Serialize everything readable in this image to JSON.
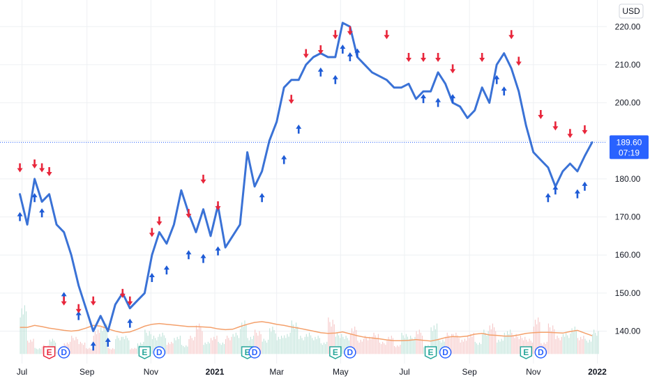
{
  "chart_data": {
    "type": "line",
    "currency": "USD",
    "y_ticks": [
      220,
      210,
      200,
      190,
      180,
      170,
      160,
      150,
      140
    ],
    "y_tick_labels": [
      "220.00",
      "210.00",
      "200.00",
      "190.00",
      "180.00",
      "170.00",
      "160.00",
      "150.00",
      "140.00"
    ],
    "ylim": [
      131.5,
      227
    ],
    "x_tick_labels": [
      "Jul",
      "Sep",
      "Nov",
      "2021",
      "Mar",
      "May",
      "Jul",
      "Sep",
      "Nov",
      "2022"
    ],
    "x_tick_bold": [
      "2021",
      "2022"
    ],
    "last_price": "189.60",
    "countdown": "07:19",
    "price_line_color": "#3a72d6",
    "volume_ma_color": "#f4a06b",
    "buy_color": "#1e5bd6",
    "sell_color": "#e8263b",
    "price_label_color": "#2962ff",
    "series": [
      {
        "x": [
          "2020-06-29",
          "2020-07-06",
          "2020-07-13",
          "2020-07-20",
          "2020-07-27",
          "2020-08-03",
          "2020-08-10",
          "2020-08-17",
          "2020-08-24",
          "2020-08-31",
          "2020-09-07",
          "2020-09-14",
          "2020-09-21",
          "2020-09-28",
          "2020-10-05",
          "2020-10-12",
          "2020-10-19",
          "2020-10-26",
          "2020-11-02",
          "2020-11-09",
          "2020-11-16",
          "2020-11-23",
          "2020-11-30",
          "2020-12-07",
          "2020-12-14",
          "2020-12-21",
          "2020-12-28",
          "2021-01-04",
          "2021-01-11",
          "2021-01-18",
          "2021-01-25",
          "2021-02-01",
          "2021-02-08",
          "2021-02-15",
          "2021-02-22",
          "2021-03-01",
          "2021-03-08",
          "2021-03-15",
          "2021-03-22",
          "2021-03-29",
          "2021-04-05",
          "2021-04-12",
          "2021-04-19",
          "2021-04-26",
          "2021-05-03",
          "2021-05-10",
          "2021-05-17",
          "2021-05-24",
          "2021-05-31",
          "2021-06-07",
          "2021-06-14",
          "2021-06-21",
          "2021-06-28",
          "2021-07-05",
          "2021-07-12",
          "2021-07-19",
          "2021-07-26",
          "2021-08-02",
          "2021-08-09",
          "2021-08-16",
          "2021-08-23",
          "2021-08-30",
          "2021-09-06",
          "2021-09-13",
          "2021-09-20",
          "2021-09-27",
          "2021-10-04",
          "2021-10-11",
          "2021-10-18",
          "2021-10-25",
          "2021-11-01",
          "2021-11-08",
          "2021-11-15",
          "2021-11-22",
          "2021-11-29",
          "2021-12-06",
          "2021-12-13",
          "2021-12-20",
          "2021-12-27"
        ],
        "values": [
          176,
          168,
          180,
          174,
          176,
          168,
          166,
          160,
          152,
          146,
          140,
          144,
          140,
          147,
          150,
          146,
          148,
          150,
          160,
          166,
          163,
          168,
          177,
          171,
          166,
          172,
          165,
          173,
          162,
          165,
          168,
          187,
          178,
          182,
          190,
          195,
          204,
          206,
          206,
          210,
          212,
          213,
          212,
          212,
          221,
          220,
          212,
          210,
          208,
          207,
          206,
          204,
          204,
          205,
          201,
          203,
          203,
          208,
          205,
          200,
          199,
          196,
          198,
          204,
          200,
          210,
          213,
          209,
          203,
          194,
          187,
          185,
          183,
          178,
          182,
          184,
          182,
          186,
          189.6
        ]
      }
    ],
    "volume_ma": [
      141,
      141,
      141.5,
      141.2,
      140.8,
      140.5,
      140.2,
      140,
      140.2,
      140.8,
      141.5,
      141.3,
      140.6,
      140,
      139.6,
      139.8,
      140.5,
      141.3,
      141.8,
      142,
      141.8,
      141.6,
      141.4,
      141.2,
      141.2,
      141.1,
      141,
      140.6,
      140.4,
      140.5,
      141.2,
      141.8,
      142.3,
      142.5,
      142.2,
      141.8,
      141.5,
      141.1,
      140.8,
      140.4,
      140,
      139.6,
      139.4,
      139.5,
      139.8,
      139.3,
      138.8,
      138.4,
      138.2,
      138,
      137.7,
      137.5,
      137.5,
      137.6,
      137.8,
      137.6,
      137.4,
      137.8,
      138.3,
      138.6,
      138.5,
      138.7,
      139.2,
      139.4,
      139,
      138.9,
      138.7,
      138.7,
      139,
      139.4,
      139.6,
      139.7,
      139.7,
      139.6,
      139.5,
      139.9,
      140.2,
      139.5,
      138.8
    ],
    "volume": [
      150,
      139,
      136,
      137,
      139,
      135,
      138,
      140,
      138,
      136,
      142,
      144,
      136,
      140,
      140,
      136,
      138,
      142,
      140,
      141,
      138,
      140,
      137,
      140,
      144,
      138,
      140,
      138,
      140,
      141,
      145,
      140,
      142,
      139,
      143,
      140,
      141,
      145,
      140,
      141,
      140,
      138,
      146,
      141,
      140,
      143,
      139,
      140,
      141,
      138,
      140,
      137,
      141,
      140,
      142,
      137,
      144,
      139,
      141,
      141,
      139,
      141,
      138,
      142,
      144,
      139,
      142,
      141,
      140,
      139,
      146,
      138,
      144,
      140,
      141,
      143,
      140,
      139,
      142
    ],
    "buy_signals": [
      [
        "2020-06-29",
        170
      ],
      [
        "2020-07-13",
        175
      ],
      [
        "2020-07-20",
        171
      ],
      [
        "2020-08-10",
        149
      ],
      [
        "2020-08-24",
        144
      ],
      [
        "2020-09-07",
        136
      ],
      [
        "2020-09-21",
        137
      ],
      [
        "2020-10-12",
        142
      ],
      [
        "2020-11-02",
        154
      ],
      [
        "2020-11-16",
        156
      ],
      [
        "2020-12-07",
        160
      ],
      [
        "2020-12-21",
        159
      ],
      [
        "2021-01-04",
        161
      ],
      [
        "2021-02-15",
        175
      ],
      [
        "2021-03-08",
        185
      ],
      [
        "2021-03-22",
        193
      ],
      [
        "2021-04-12",
        208
      ],
      [
        "2021-04-26",
        206
      ],
      [
        "2021-05-03",
        214
      ],
      [
        "2021-05-10",
        212
      ],
      [
        "2021-05-17",
        213
      ],
      [
        "2021-07-19",
        201
      ],
      [
        "2021-08-02",
        200
      ],
      [
        "2021-08-16",
        201
      ],
      [
        "2021-09-27",
        206
      ],
      [
        "2021-10-04",
        203
      ],
      [
        "2021-11-15",
        175
      ],
      [
        "2021-11-22",
        177
      ],
      [
        "2021-12-13",
        176
      ],
      [
        "2021-12-20",
        178
      ]
    ],
    "sell_signals": [
      [
        "2020-06-29",
        183
      ],
      [
        "2020-07-13",
        184
      ],
      [
        "2020-07-20",
        183
      ],
      [
        "2020-07-27",
        182
      ],
      [
        "2020-08-10",
        148
      ],
      [
        "2020-08-24",
        146
      ],
      [
        "2020-09-07",
        148
      ],
      [
        "2020-10-05",
        150
      ],
      [
        "2020-10-12",
        148
      ],
      [
        "2020-11-02",
        166
      ],
      [
        "2020-11-09",
        169
      ],
      [
        "2020-12-07",
        171
      ],
      [
        "2020-12-21",
        180
      ],
      [
        "2021-01-04",
        173
      ],
      [
        "2021-03-15",
        201
      ],
      [
        "2021-03-29",
        213
      ],
      [
        "2021-04-12",
        214
      ],
      [
        "2021-04-26",
        218
      ],
      [
        "2021-05-10",
        219
      ],
      [
        "2021-06-14",
        218
      ],
      [
        "2021-07-05",
        212
      ],
      [
        "2021-07-19",
        212
      ],
      [
        "2021-08-02",
        212
      ],
      [
        "2021-08-16",
        209
      ],
      [
        "2021-09-13",
        212
      ],
      [
        "2021-10-11",
        218
      ],
      [
        "2021-10-18",
        211
      ],
      [
        "2021-11-08",
        197
      ],
      [
        "2021-11-22",
        194
      ],
      [
        "2021-12-06",
        192
      ],
      [
        "2021-12-20",
        193
      ]
    ],
    "events": [
      {
        "label": "E",
        "date": "2020-07-27",
        "kind": "earnings-red"
      },
      {
        "label": "D",
        "date": "2020-08-10",
        "kind": "dividend"
      },
      {
        "label": "E",
        "date": "2020-10-26",
        "kind": "earnings-green"
      },
      {
        "label": "D",
        "date": "2020-11-09",
        "kind": "dividend"
      },
      {
        "label": "E",
        "date": "2021-02-01",
        "kind": "earnings-green"
      },
      {
        "label": "D",
        "date": "2021-02-08",
        "kind": "dividend"
      },
      {
        "label": "E",
        "date": "2021-04-26",
        "kind": "earnings-green"
      },
      {
        "label": "D",
        "date": "2021-05-10",
        "kind": "dividend"
      },
      {
        "label": "E",
        "date": "2021-07-26",
        "kind": "earnings-green"
      },
      {
        "label": "D",
        "date": "2021-08-09",
        "kind": "dividend"
      },
      {
        "label": "E",
        "date": "2021-10-25",
        "kind": "earnings-green"
      },
      {
        "label": "D",
        "date": "2021-11-08",
        "kind": "dividend"
      }
    ]
  }
}
